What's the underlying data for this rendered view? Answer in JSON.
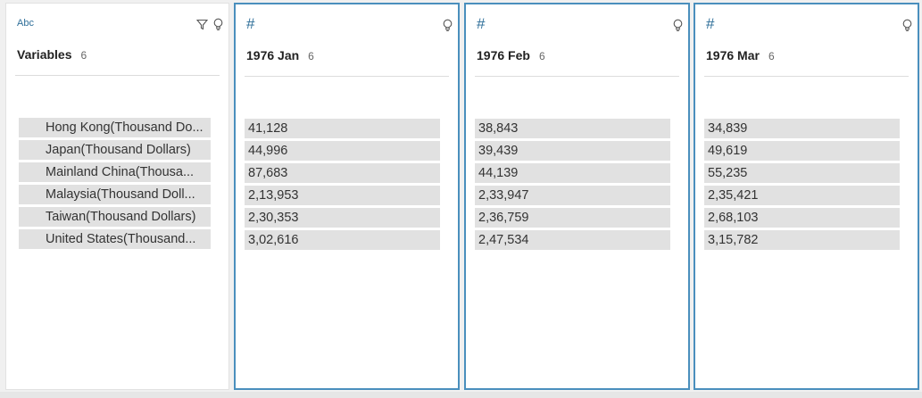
{
  "variables_card": {
    "type_label": "Abc",
    "title": "Variables",
    "count": "6",
    "rows": [
      "Hong Kong(Thousand Do...",
      "Japan(Thousand Dollars)",
      "Mainland China(Thousa...",
      "Malaysia(Thousand Doll...",
      "Taiwan(Thousand Dollars)",
      "United States(Thousand..."
    ]
  },
  "columns": [
    {
      "type_label": "#",
      "title": "1976 Jan",
      "count": "6",
      "rows": [
        "41,128",
        "44,996",
        "87,683",
        "2,13,953",
        "2,30,353",
        "3,02,616"
      ]
    },
    {
      "type_label": "#",
      "title": "1976 Feb",
      "count": "6",
      "rows": [
        "38,843",
        "39,439",
        "44,139",
        "2,33,947",
        "2,36,759",
        "2,47,534"
      ]
    },
    {
      "type_label": "#",
      "title": "1976 Mar",
      "count": "6",
      "rows": [
        "34,839",
        "49,619",
        "55,235",
        "2,35,421",
        "2,68,103",
        "3,15,782"
      ]
    }
  ],
  "icons": {
    "filter": "filter-icon",
    "recommendation": "lightbulb-icon"
  },
  "colors": {
    "accent": "#4a8fbd",
    "row_bg": "#e1e1e1"
  }
}
